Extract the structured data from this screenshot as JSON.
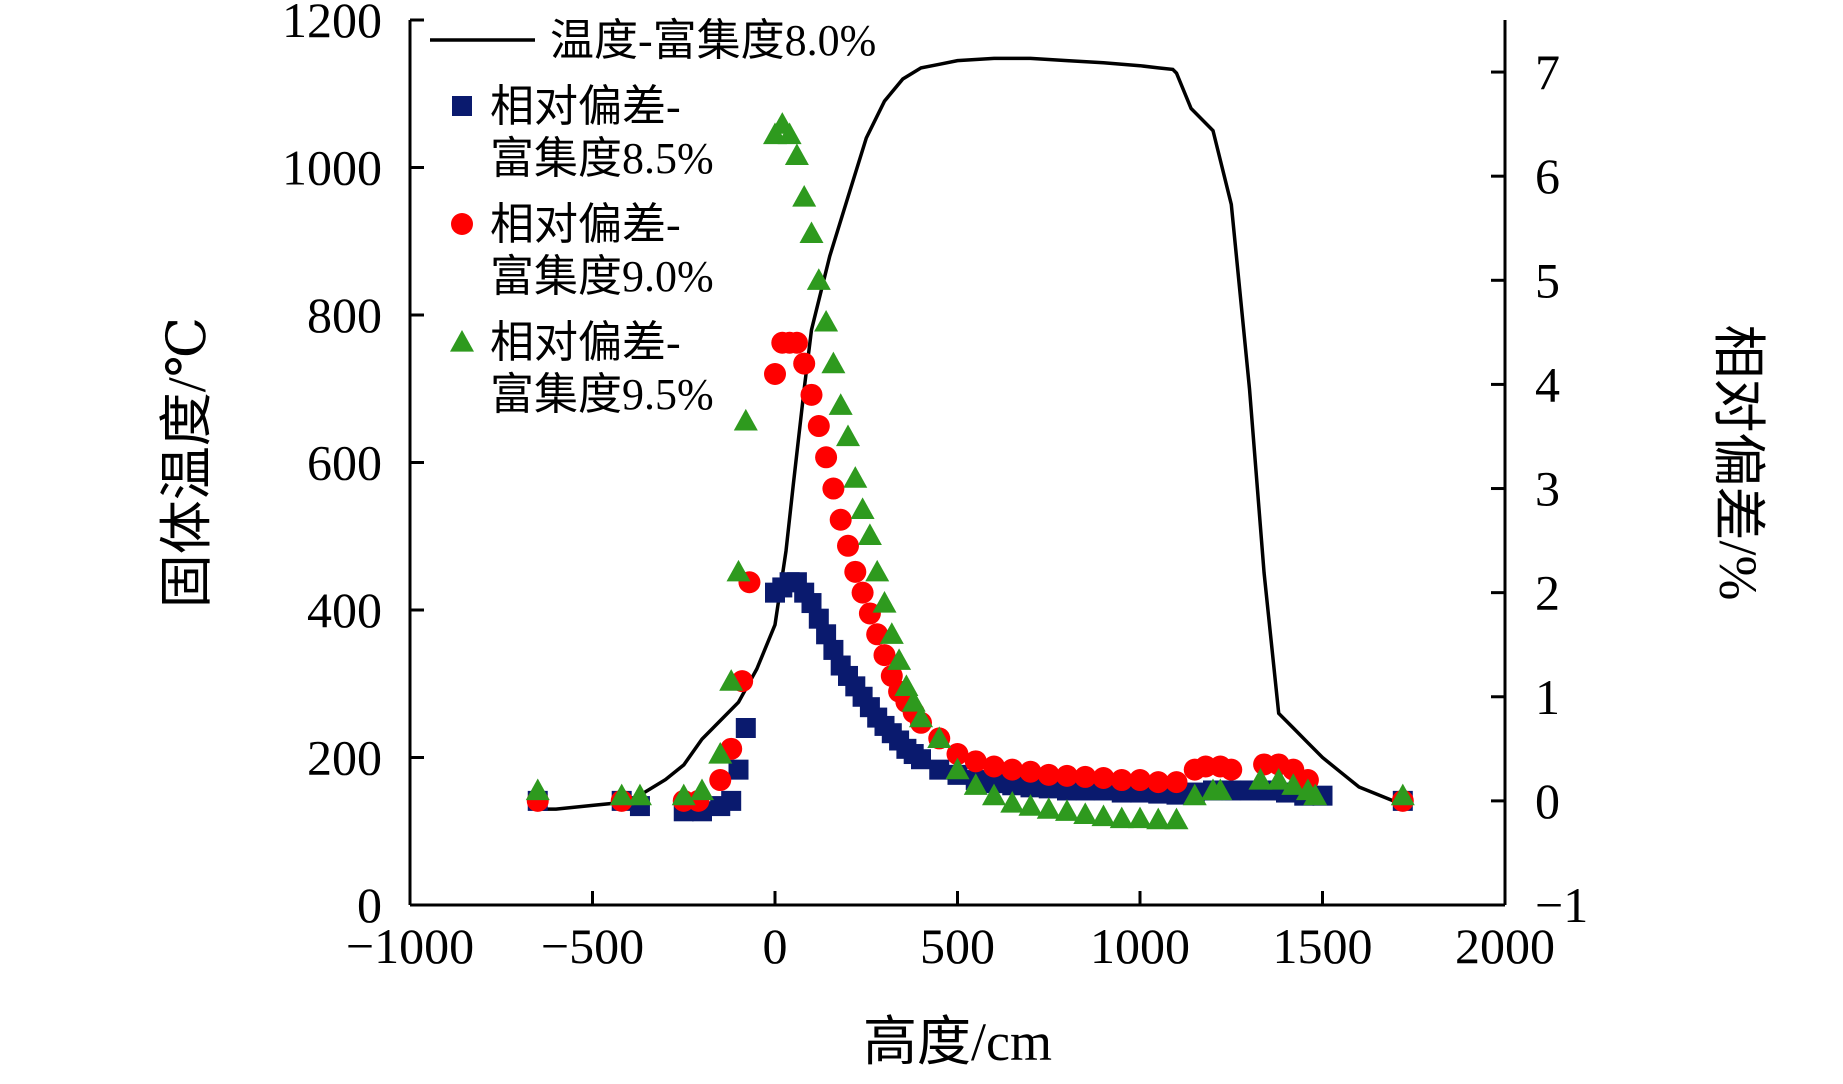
{
  "chart_data": {
    "type": "line+scatter",
    "xlabel": "高度/cm",
    "ylabel_left": "固体温度/℃",
    "ylabel_right": "相对偏差/%",
    "xlim": [
      -1000,
      2000
    ],
    "ylim_left": [
      0,
      1200
    ],
    "ylim_right": [
      -1,
      7.5
    ],
    "x_ticks": [
      -1000,
      -500,
      0,
      500,
      1000,
      1500,
      2000
    ],
    "x_tick_labels": [
      "−1000",
      "−500",
      "0",
      "500",
      "1000",
      "1500",
      "2000"
    ],
    "y_left_ticks": [
      0,
      200,
      400,
      600,
      800,
      1000,
      1200
    ],
    "y_left_tick_labels": [
      "0",
      "200",
      "400",
      "600",
      "800",
      "1000",
      "1200"
    ],
    "y_right_ticks": [
      -1,
      0,
      1,
      2,
      3,
      4,
      5,
      6,
      7
    ],
    "y_right_tick_labels": [
      "−1",
      "0",
      "1",
      "2",
      "3",
      "4",
      "5",
      "6",
      "7"
    ],
    "legend_position": "top-left",
    "legend": [
      {
        "lines": [
          "温度-富集度8.0%"
        ],
        "marker": "line",
        "color": "#000000"
      },
      {
        "lines": [
          "相对偏差-",
          "富集度8.5%"
        ],
        "marker": "square",
        "color": "#0a1a6e"
      },
      {
        "lines": [
          "相对偏差-",
          "富集度9.0%"
        ],
        "marker": "circle",
        "color": "#ff0000"
      },
      {
        "lines": [
          "相对偏差-",
          "富集度9.5%"
        ],
        "marker": "triangle",
        "color": "#2e9a1e"
      }
    ],
    "series": [
      {
        "axis": "left",
        "marker": "line",
        "color": "#000000",
        "x": [
          -650,
          -600,
          -500,
          -400,
          -300,
          -250,
          -200,
          -150,
          -100,
          -50,
          0,
          30,
          50,
          80,
          100,
          150,
          200,
          250,
          300,
          350,
          400,
          450,
          500,
          600,
          700,
          800,
          900,
          1000,
          1050,
          1090,
          1100,
          1140,
          1200,
          1250,
          1300,
          1340,
          1380,
          1420,
          1460,
          1500,
          1550,
          1600,
          1700
        ],
        "y": [
          130,
          130,
          135,
          140,
          170,
          190,
          225,
          250,
          275,
          320,
          380,
          480,
          570,
          700,
          780,
          880,
          960,
          1040,
          1090,
          1120,
          1135,
          1140,
          1145,
          1148,
          1148,
          1145,
          1142,
          1138,
          1135,
          1133,
          1128,
          1080,
          1050,
          950,
          700,
          450,
          260,
          240,
          220,
          200,
          180,
          160,
          140
        ]
      },
      {
        "axis": "right",
        "marker": "square",
        "color": "#0a1a6e",
        "x": [
          -650,
          -420,
          -370,
          -250,
          -200,
          -150,
          -120,
          -100,
          -80,
          0,
          20,
          40,
          60,
          80,
          100,
          120,
          140,
          160,
          180,
          200,
          220,
          240,
          260,
          280,
          300,
          320,
          340,
          360,
          380,
          400,
          450,
          500,
          550,
          600,
          650,
          700,
          750,
          800,
          850,
          900,
          950,
          1000,
          1050,
          1100,
          1150,
          1200,
          1250,
          1300,
          1350,
          1400,
          1450,
          1500,
          1720
        ],
        "y": [
          0.0,
          0.0,
          -0.05,
          -0.1,
          -0.1,
          -0.05,
          0.0,
          0.3,
          0.7,
          2.0,
          2.05,
          2.1,
          2.1,
          2.0,
          1.9,
          1.75,
          1.6,
          1.45,
          1.3,
          1.2,
          1.1,
          1.0,
          0.9,
          0.8,
          0.72,
          0.65,
          0.58,
          0.5,
          0.45,
          0.4,
          0.3,
          0.25,
          0.2,
          0.17,
          0.15,
          0.13,
          0.12,
          0.1,
          0.1,
          0.1,
          0.08,
          0.08,
          0.07,
          0.06,
          0.08,
          0.1,
          0.1,
          0.1,
          0.1,
          0.08,
          0.05,
          0.05,
          0.0
        ]
      },
      {
        "axis": "right",
        "marker": "circle",
        "color": "#ff0000",
        "x": [
          -650,
          -420,
          -250,
          -210,
          -150,
          -120,
          -90,
          -70,
          0,
          20,
          40,
          60,
          80,
          100,
          120,
          140,
          160,
          180,
          200,
          220,
          240,
          260,
          280,
          300,
          320,
          340,
          360,
          380,
          400,
          450,
          500,
          550,
          600,
          650,
          700,
          750,
          800,
          850,
          900,
          950,
          1000,
          1050,
          1100,
          1150,
          1180,
          1220,
          1250,
          1340,
          1380,
          1420,
          1460,
          1720
        ],
        "y": [
          0.0,
          0.0,
          0.0,
          0.0,
          0.2,
          0.5,
          1.15,
          2.1,
          4.1,
          4.4,
          4.4,
          4.4,
          4.2,
          3.9,
          3.6,
          3.3,
          3.0,
          2.7,
          2.45,
          2.2,
          2.0,
          1.8,
          1.6,
          1.4,
          1.2,
          1.05,
          0.95,
          0.85,
          0.75,
          0.6,
          0.45,
          0.38,
          0.33,
          0.3,
          0.28,
          0.25,
          0.24,
          0.23,
          0.22,
          0.2,
          0.2,
          0.18,
          0.18,
          0.3,
          0.33,
          0.33,
          0.3,
          0.35,
          0.35,
          0.3,
          0.2,
          0.0
        ]
      },
      {
        "axis": "right",
        "marker": "triangle",
        "color": "#2e9a1e",
        "x": [
          -650,
          -420,
          -370,
          -250,
          -200,
          -150,
          -120,
          -100,
          -80,
          0,
          20,
          40,
          60,
          80,
          100,
          120,
          140,
          160,
          180,
          200,
          220,
          240,
          260,
          280,
          300,
          320,
          340,
          360,
          380,
          400,
          450,
          500,
          550,
          600,
          650,
          700,
          750,
          800,
          850,
          900,
          950,
          1000,
          1050,
          1100,
          1150,
          1200,
          1220,
          1330,
          1380,
          1420,
          1460,
          1480,
          1720
        ],
        "y": [
          0.1,
          0.05,
          0.05,
          0.05,
          0.1,
          0.45,
          1.15,
          2.2,
          3.65,
          6.4,
          6.5,
          6.4,
          6.2,
          5.8,
          5.45,
          5.0,
          4.6,
          4.2,
          3.8,
          3.5,
          3.1,
          2.8,
          2.55,
          2.2,
          1.9,
          1.6,
          1.35,
          1.1,
          0.95,
          0.8,
          0.6,
          0.3,
          0.15,
          0.05,
          -0.02,
          -0.05,
          -0.08,
          -0.1,
          -0.13,
          -0.15,
          -0.17,
          -0.17,
          -0.18,
          -0.18,
          0.05,
          0.1,
          0.1,
          0.2,
          0.2,
          0.15,
          0.1,
          0.05,
          0.05
        ]
      }
    ]
  }
}
